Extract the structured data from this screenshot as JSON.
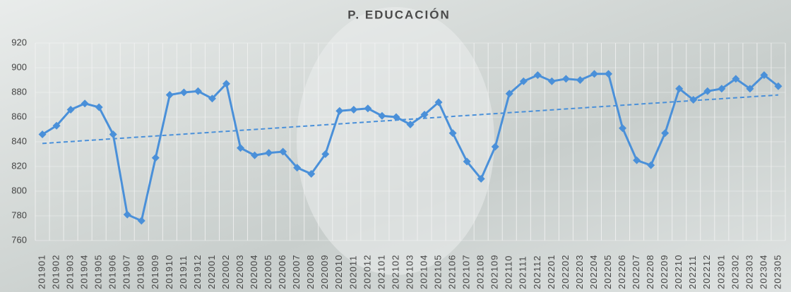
{
  "chart_data": {
    "type": "line",
    "title": "P. EDUCACIÓN",
    "categories": [
      "201901",
      "201902",
      "201903",
      "201904",
      "201905",
      "201906",
      "201907",
      "201908",
      "201909",
      "201910",
      "201911",
      "201912",
      "202001",
      "202002",
      "202003",
      "202004",
      "202005",
      "202006",
      "202007",
      "202008",
      "202009",
      "202010",
      "202011",
      "202012",
      "202101",
      "202102",
      "202103",
      "202104",
      "202105",
      "202106",
      "202107",
      "202108",
      "202109",
      "202110",
      "202111",
      "202112",
      "202201",
      "202202",
      "202203",
      "202204",
      "202205",
      "202206",
      "202207",
      "202208",
      "202209",
      "202210",
      "202211",
      "202212",
      "202301",
      "202302",
      "202303",
      "202304",
      "202305"
    ],
    "series": [
      {
        "color": "#4a90d9",
        "values": [
          846,
          853,
          866,
          871,
          868,
          846,
          781,
          776,
          827,
          878,
          880,
          881,
          875,
          887,
          835,
          829,
          831,
          832,
          819,
          814,
          830,
          865,
          866,
          867,
          861,
          860,
          854,
          862,
          872,
          847,
          824,
          810,
          836,
          879,
          889,
          894,
          889,
          891,
          890,
          895,
          895,
          851,
          825,
          821,
          847,
          883,
          874,
          881,
          883,
          891,
          883,
          894,
          885
        ]
      }
    ],
    "trendline": true,
    "ylim": [
      760,
      920
    ],
    "yticks": [
      760,
      780,
      800,
      820,
      840,
      860,
      880,
      900,
      920
    ],
    "grid": true
  }
}
